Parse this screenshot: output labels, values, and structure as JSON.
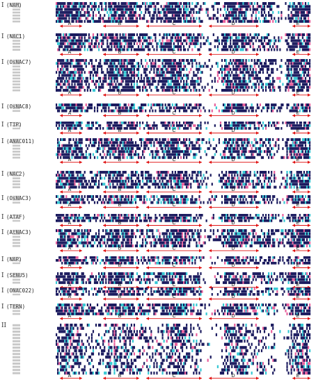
{
  "figure": {
    "group_one_marker": "I",
    "group_two_marker": "II",
    "domain_letters": [
      "A",
      "B",
      "C",
      "D",
      "E"
    ],
    "subgroups": [
      {
        "name": "(NAM)",
        "rows": 7
      },
      {
        "name": "(NAC1)",
        "rows": 6
      },
      {
        "name": "(OsNAC7)",
        "rows": 11
      },
      {
        "name": "(OsNAC8)",
        "rows": 3
      },
      {
        "name": "(TIP)",
        "rows": 3
      },
      {
        "name": "(ANAC011)",
        "rows": 7
      },
      {
        "name": "(NAC2)",
        "rows": 6
      },
      {
        "name": "(OsNAC3)",
        "rows": 3
      },
      {
        "name": "(ATAF)",
        "rows": 3
      },
      {
        "name": "(AtNAC3)",
        "rows": 6
      },
      {
        "name": "(NAP)",
        "rows": 3
      },
      {
        "name": "(SENU5)",
        "rows": 4
      },
      {
        "name": "(ONAC022)",
        "rows": 3
      },
      {
        "name": "(TERN)",
        "rows": 4
      }
    ],
    "group_two_rows": 16
  },
  "colors": {
    "identical": "#1a1a5e",
    "similar": "#e8609c",
    "conserved": "#35c8d4",
    "arrow": "#e01010",
    "background": "#ffffff"
  }
}
